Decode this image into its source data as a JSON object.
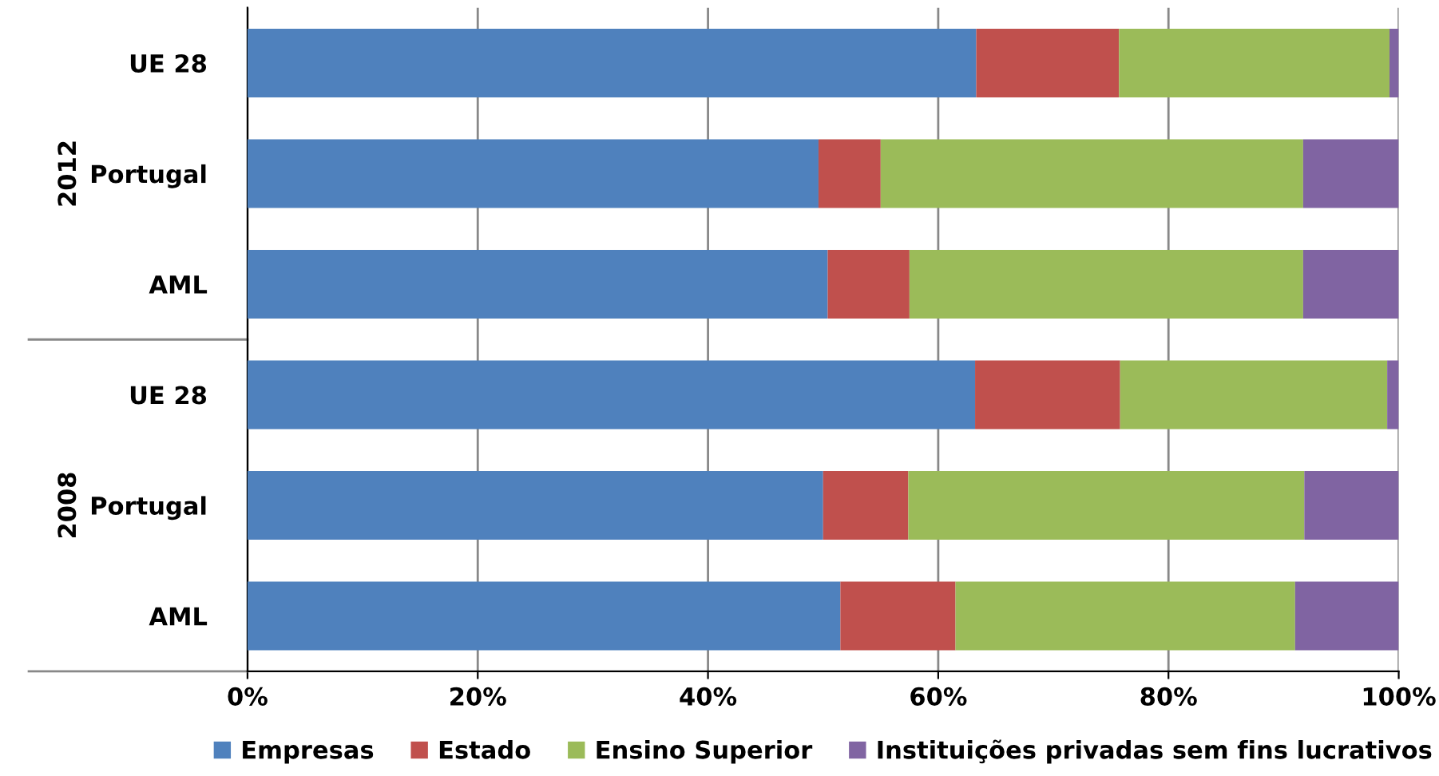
{
  "chart_data": {
    "type": "bar",
    "orientation": "horizontal",
    "stacked": true,
    "categories": [
      "UE 28",
      "Portugal",
      "AML",
      "UE 28",
      "Portugal",
      "AML"
    ],
    "series": [
      {
        "name": "Empresas",
        "color": "#4f81bd",
        "values": [
          63.3,
          49.6,
          50.4,
          63.2,
          50.0,
          51.5
        ]
      },
      {
        "name": "Estado",
        "color": "#c0504d",
        "values": [
          12.4,
          5.4,
          7.1,
          12.6,
          7.4,
          10.0
        ]
      },
      {
        "name": "Ensino Superior",
        "color": "#9bbb59",
        "values": [
          23.5,
          36.7,
          34.2,
          23.2,
          34.4,
          29.5
        ]
      },
      {
        "name": "Instituições privadas sem fins lucrativos",
        "color": "#8064a2",
        "values": [
          0.8,
          8.3,
          8.3,
          1.0,
          8.2,
          9.0
        ]
      }
    ],
    "xlim": [
      0,
      100
    ],
    "xticks": [
      {
        "value": 0,
        "label": "0%"
      },
      {
        "value": 20,
        "label": "20%"
      },
      {
        "value": 40,
        "label": "40%"
      },
      {
        "value": 60,
        "label": "60%"
      },
      {
        "value": 80,
        "label": "80%"
      },
      {
        "value": 100,
        "label": "100%"
      }
    ],
    "annotations": [
      "2012",
      "2008"
    ],
    "grid": "x",
    "legend": "bottom"
  }
}
